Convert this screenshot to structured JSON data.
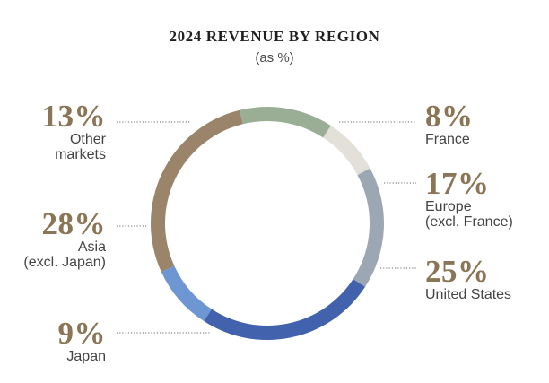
{
  "chart_data": {
    "type": "pie",
    "style": "donut",
    "title": "2024 REVENUE BY REGION",
    "subtitle": "(as %)",
    "unit": "%",
    "slices": [
      {
        "label_line1": "France",
        "label_line2": "",
        "pct_label": "8%",
        "value": 8,
        "color": "#e3e0da"
      },
      {
        "label_line1": "Europe",
        "label_line2": "(excl. France)",
        "pct_label": "17%",
        "value": 17,
        "color": "#9ba8b4"
      },
      {
        "label_line1": "United States",
        "label_line2": "",
        "pct_label": "25%",
        "value": 25,
        "color": "#4262ad"
      },
      {
        "label_line1": "Japan",
        "label_line2": "",
        "pct_label": "9%",
        "value": 9,
        "color": "#6d96d2"
      },
      {
        "label_line1": "Asia",
        "label_line2": "(excl. Japan)",
        "pct_label": "28%",
        "value": 28,
        "color": "#9a846a"
      },
      {
        "label_line1": "Other",
        "label_line2": "markets",
        "pct_label": "13%",
        "value": 13,
        "color": "#9aad95"
      }
    ]
  }
}
